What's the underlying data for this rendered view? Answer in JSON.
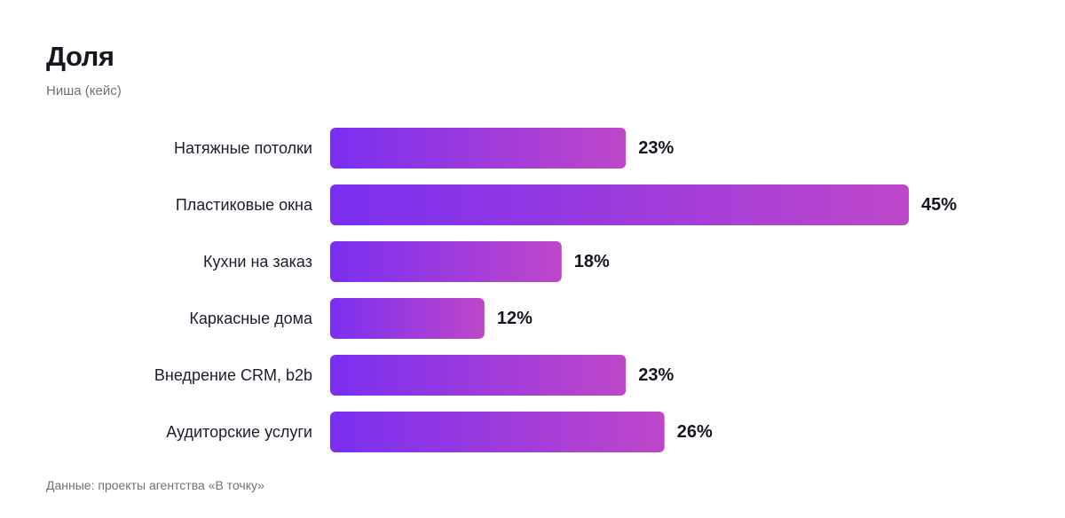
{
  "header": {
    "title": "Доля",
    "subtitle": "Ниша (кейс)"
  },
  "footer": {
    "source": "Данные: проекты агентства «В точку»"
  },
  "colors": {
    "bar_start": "#7a2ff0",
    "bar_end": "#be47c9",
    "label": "#1d1d2b",
    "value_label": "#16161f"
  },
  "chart_data": {
    "type": "bar",
    "orientation": "horizontal",
    "title": "Доля",
    "subtitle": "Ниша (кейс)",
    "xlabel": "",
    "ylabel": "",
    "grid": false,
    "xlim": [
      0,
      45
    ],
    "value_suffix": "%",
    "categories": [
      "Натяжные потолки",
      "Пластиковые окна",
      "Кухни на заказ",
      "Каркасные дома",
      "Внедрение CRM, b2b",
      "Аудиторские услуги"
    ],
    "values": [
      23,
      45,
      18,
      12,
      23,
      26
    ],
    "data_labels": [
      "23%",
      "45%",
      "18%",
      "12%",
      "23%",
      "26%"
    ]
  }
}
